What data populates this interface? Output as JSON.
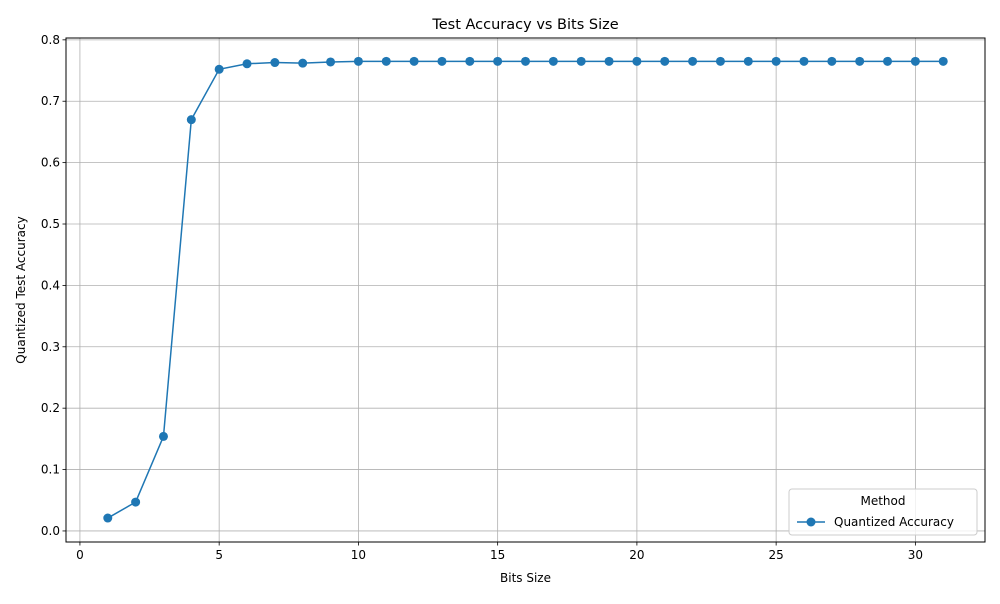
{
  "chart_data": {
    "type": "line",
    "title": "Test Accuracy vs Bits Size",
    "xlabel": "Bits Size",
    "ylabel": "Quantized Test Accuracy",
    "xlim": [
      -0.5,
      32.5
    ],
    "ylim": [
      -0.018,
      0.803
    ],
    "x_ticks": [
      0,
      5,
      10,
      15,
      20,
      25,
      30
    ],
    "y_ticks": [
      0.0,
      0.1,
      0.2,
      0.3,
      0.4,
      0.5,
      0.6,
      0.7,
      0.8
    ],
    "x_tick_labels": [
      "0",
      "5",
      "10",
      "15",
      "20",
      "25",
      "30"
    ],
    "y_tick_labels": [
      "0.0",
      "0.1",
      "0.2",
      "0.3",
      "0.4",
      "0.5",
      "0.6",
      "0.7",
      "0.8"
    ],
    "grid": true,
    "legend": {
      "title": "Method",
      "placement": "lower-right"
    },
    "x": [
      1,
      2,
      3,
      4,
      5,
      6,
      7,
      8,
      9,
      10,
      11,
      12,
      13,
      14,
      15,
      16,
      17,
      18,
      19,
      20,
      21,
      22,
      23,
      24,
      25,
      26,
      27,
      28,
      29,
      30,
      31
    ],
    "series": [
      {
        "name": "Quantized Accuracy",
        "color": "#1f77b4",
        "marker": "circle",
        "values": [
          0.021,
          0.047,
          0.154,
          0.67,
          0.752,
          0.761,
          0.763,
          0.762,
          0.764,
          0.765,
          0.765,
          0.765,
          0.765,
          0.765,
          0.765,
          0.765,
          0.765,
          0.765,
          0.765,
          0.765,
          0.765,
          0.765,
          0.765,
          0.765,
          0.765,
          0.765,
          0.765,
          0.765,
          0.765,
          0.765,
          0.765
        ]
      }
    ]
  }
}
